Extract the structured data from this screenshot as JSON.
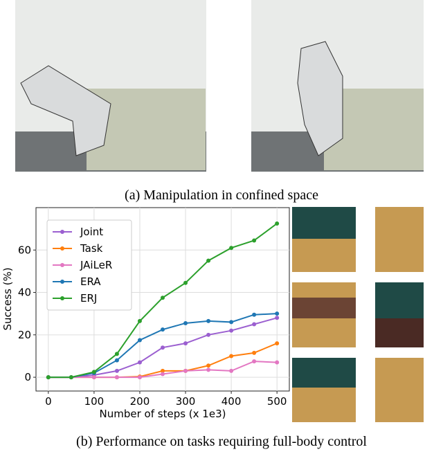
{
  "captions": {
    "a": "(a) Manipulation in confined space",
    "b": "(b) Performance on tasks requiring full-body control"
  },
  "chart_data": {
    "type": "line",
    "x": [
      0,
      50,
      100,
      150,
      200,
      250,
      300,
      350,
      400,
      450,
      500
    ],
    "xlabel": "Number of steps (x 1e3)",
    "ylabel": "Success (%)",
    "xlim": [
      -27,
      527
    ],
    "ylim": [
      -6.5,
      80
    ],
    "xticks": [
      0,
      100,
      200,
      300,
      400,
      500
    ],
    "yticks": [
      0,
      20,
      40,
      60
    ],
    "grid": true,
    "legend": "upper left",
    "series": [
      {
        "name": "Joint",
        "color": "#9b5fd0",
        "values": [
          0,
          0,
          1,
          3,
          7,
          14,
          16,
          20,
          22,
          25,
          28
        ]
      },
      {
        "name": "Task",
        "color": "#ff7f0e",
        "values": [
          0,
          0,
          0,
          0,
          0.3,
          3,
          3,
          5.5,
          10,
          11.5,
          16
        ]
      },
      {
        "name": "JAiLeR",
        "color": "#e377c2",
        "values": [
          0,
          0,
          0,
          0,
          0,
          1.5,
          3,
          3.5,
          3,
          7.5,
          7
        ]
      },
      {
        "name": "ERA",
        "color": "#1f77b4",
        "values": [
          0,
          0,
          2,
          8,
          17.5,
          22.5,
          25.5,
          26.5,
          26,
          29.5,
          30
        ]
      },
      {
        "name": "ERJ",
        "color": "#2ca02c",
        "values": [
          0,
          0,
          2.5,
          11,
          26.5,
          37.5,
          44.5,
          55,
          61,
          64.5,
          72.5
        ]
      }
    ]
  }
}
